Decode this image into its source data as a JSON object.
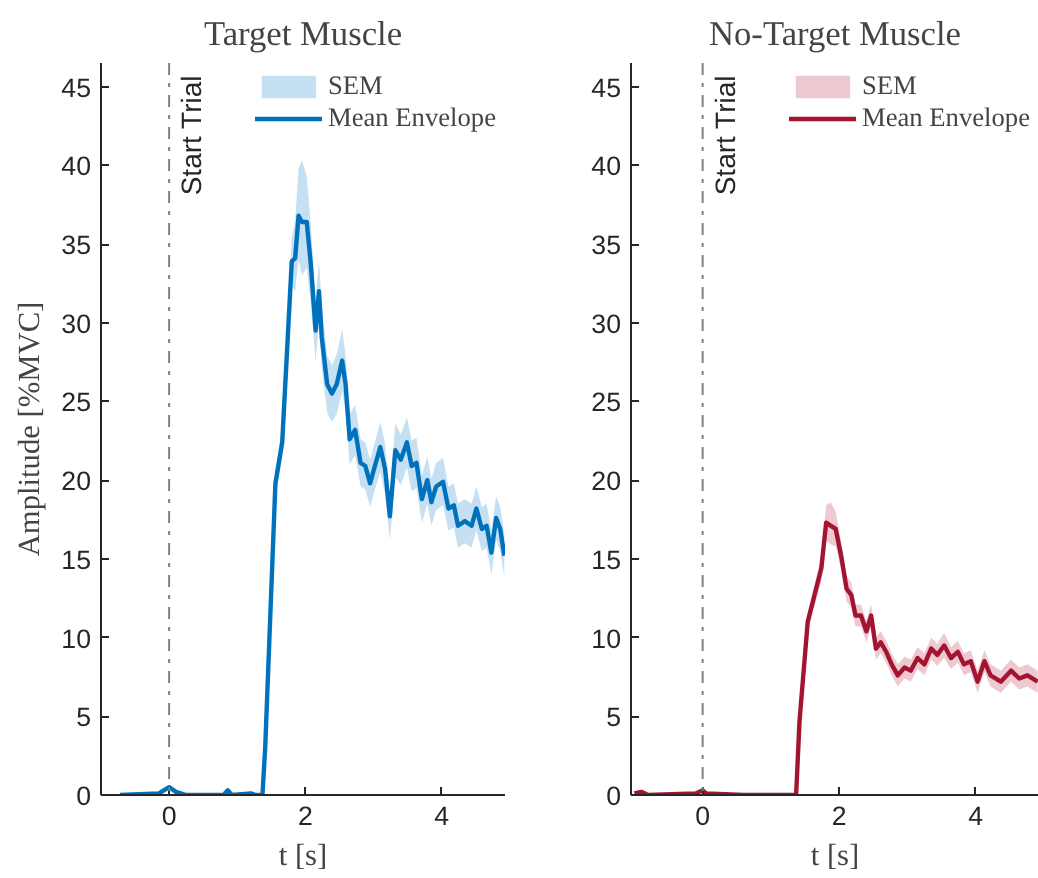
{
  "chart_data": [
    {
      "type": "line",
      "title": "Target Muscle",
      "xlabel": "t [s]",
      "ylabel": "Amplitude [%MVC]",
      "xlim": [
        -1,
        4.93
      ],
      "ylim": [
        0,
        46.5
      ],
      "xticks": [
        0,
        2,
        4
      ],
      "yticks": [
        0,
        5,
        10,
        15,
        20,
        25,
        30,
        35,
        40,
        45
      ],
      "grid": false,
      "legend": "top right",
      "marker": "none",
      "line_style": "solid",
      "ref_lines": [
        {
          "axis": "x",
          "value": 0,
          "label": "Start Trial",
          "color": "#808080",
          "line_style": "dashdot"
        }
      ],
      "series": [
        {
          "name": "SEM",
          "type": "area",
          "color": "#c5e0f2"
        },
        {
          "name": "Mean Envelope",
          "color": "#0072bd",
          "x": [
            -0.72,
            -0.15,
            0,
            0.1,
            0.25,
            0.8,
            0.86,
            0.92,
            1.2,
            1.27,
            1.37,
            1.41,
            1.56,
            1.66,
            1.8,
            1.85,
            1.9,
            1.95,
            2.02,
            2.08,
            2.15,
            2.2,
            2.24,
            2.32,
            2.39,
            2.46,
            2.54,
            2.59,
            2.65,
            2.73,
            2.81,
            2.88,
            2.95,
            3.02,
            3.1,
            3.17,
            3.24,
            3.32,
            3.4,
            3.49,
            3.56,
            3.63,
            3.71,
            3.79,
            3.85,
            3.92,
            4.02,
            4.1,
            4.18,
            4.24,
            4.34,
            4.44,
            4.51,
            4.59,
            4.66,
            4.73,
            4.8,
            4.86,
            4.92
          ],
          "values": [
            0,
            0.1,
            0.5,
            0.2,
            0,
            0,
            0.3,
            0,
            0.1,
            0,
            0,
            3,
            19.8,
            22.4,
            33.9,
            34.1,
            36.8,
            36.4,
            36.4,
            33.7,
            29.5,
            32,
            29.1,
            26.1,
            25.5,
            26.1,
            27.6,
            26.1,
            22.6,
            23.2,
            21.1,
            20.9,
            19.8,
            20.9,
            22.1,
            20.7,
            17.7,
            21.9,
            21.3,
            22.4,
            20.9,
            21.1,
            18.8,
            20,
            18.6,
            19.6,
            19.9,
            18.2,
            18.4,
            17.1,
            17.4,
            17.1,
            18.2,
            16.9,
            17.1,
            15.4,
            17.6,
            16.9,
            15.2
          ],
          "lower": [
            null,
            null,
            null,
            null,
            null,
            null,
            null,
            null,
            null,
            null,
            null,
            2.5,
            19,
            21.4,
            32.4,
            32,
            34,
            33,
            33.5,
            31.2,
            27.5,
            30,
            27.1,
            24.3,
            23.7,
            24.2,
            25.6,
            24.3,
            21,
            21.6,
            19.6,
            19.4,
            18.3,
            19.4,
            20.5,
            19.1,
            16.2,
            20.2,
            19.7,
            20.8,
            19.3,
            19.5,
            17.3,
            18.5,
            17.1,
            18.1,
            18.4,
            16.8,
            17,
            15.7,
            16,
            15.7,
            16.8,
            15.5,
            15.7,
            14,
            16.2,
            15.5,
            13.8
          ],
          "upper": [
            null,
            null,
            null,
            null,
            null,
            null,
            null,
            null,
            null,
            null,
            null,
            3.5,
            20.6,
            23.4,
            35.4,
            36.5,
            39.8,
            40.3,
            39.3,
            36.2,
            31.5,
            34,
            31.1,
            27.9,
            27.3,
            28,
            29.6,
            27.9,
            24.2,
            24.8,
            22.6,
            22.4,
            21.3,
            22.4,
            23.7,
            22.3,
            19.2,
            23.6,
            22.9,
            24,
            22.5,
            22.7,
            20.3,
            21.5,
            20.1,
            21.1,
            21.4,
            19.6,
            19.8,
            18.5,
            18.8,
            18.5,
            19.6,
            18.3,
            18.5,
            16.8,
            19,
            18.3,
            16.6
          ]
        }
      ]
    },
    {
      "type": "line",
      "title": "No-Target Muscle",
      "xlabel": "t [s]",
      "xlim": [
        -1.05,
        4.93
      ],
      "ylim": [
        0,
        46.5
      ],
      "xticks": [
        0,
        2,
        4
      ],
      "yticks": [
        0,
        5,
        10,
        15,
        20,
        25,
        30,
        35,
        40,
        45
      ],
      "grid": false,
      "legend": "top right",
      "marker": "none",
      "line_style": "solid",
      "ref_lines": [
        {
          "axis": "x",
          "value": 0,
          "label": "Start Trial",
          "color": "#808080",
          "line_style": "dashdot"
        }
      ],
      "series": [
        {
          "name": "SEM",
          "type": "area",
          "color": "#efc9d2"
        },
        {
          "name": "Mean Envelope",
          "color": "#a2142f",
          "x": [
            -1.0,
            -0.9,
            -0.8,
            -0.1,
            0,
            0.05,
            0.6,
            0.8,
            1.37,
            1.42,
            1.54,
            1.64,
            1.74,
            1.81,
            1.88,
            1.95,
            2.03,
            2.11,
            2.18,
            2.24,
            2.32,
            2.4,
            2.47,
            2.54,
            2.61,
            2.69,
            2.77,
            2.86,
            2.96,
            3.05,
            3.15,
            3.25,
            3.35,
            3.44,
            3.54,
            3.64,
            3.74,
            3.83,
            3.93,
            4.03,
            4.13,
            4.22,
            4.37,
            4.52,
            4.64,
            4.76,
            4.91
          ],
          "values": [
            0.1,
            0.2,
            0,
            0.1,
            0.3,
            0.1,
            0,
            0,
            0,
            4.7,
            11,
            12.7,
            14.4,
            17.3,
            17.1,
            16.9,
            15.2,
            13.1,
            12.7,
            11.4,
            11.4,
            10.4,
            11.4,
            9.3,
            9.7,
            9.1,
            8.3,
            7.6,
            8.1,
            7.9,
            8.7,
            8.3,
            9.3,
            8.9,
            9.5,
            8.7,
            9.1,
            8.3,
            8.5,
            7.2,
            8.5,
            7.6,
            7.2,
            7.9,
            7.4,
            7.6,
            7.2
          ],
          "lower": [
            null,
            null,
            null,
            null,
            null,
            null,
            null,
            null,
            null,
            4.2,
            10.4,
            12,
            13.6,
            16.2,
            15.9,
            15.8,
            14.3,
            12.3,
            11.9,
            10.7,
            10.7,
            9.7,
            10.7,
            8.6,
            9,
            8.4,
            7.6,
            6.9,
            7.4,
            7.2,
            8,
            7.6,
            8.6,
            8.2,
            8.7,
            8,
            8.4,
            7.6,
            7.8,
            6.5,
            7.8,
            6.9,
            6.5,
            7.2,
            6.7,
            6.9,
            6.5
          ],
          "upper": [
            null,
            null,
            null,
            null,
            null,
            null,
            null,
            null,
            null,
            5.2,
            11.6,
            13.4,
            15.2,
            18.4,
            18.6,
            18,
            16.1,
            13.9,
            13.5,
            12.1,
            12.1,
            11.1,
            12.1,
            10,
            10.4,
            9.8,
            9,
            8.3,
            8.8,
            8.6,
            9.4,
            9,
            10,
            9.6,
            10.3,
            9.4,
            9.8,
            9,
            9.2,
            7.9,
            9.2,
            8.3,
            7.9,
            8.6,
            8.1,
            8.3,
            7.9
          ]
        }
      ]
    }
  ]
}
